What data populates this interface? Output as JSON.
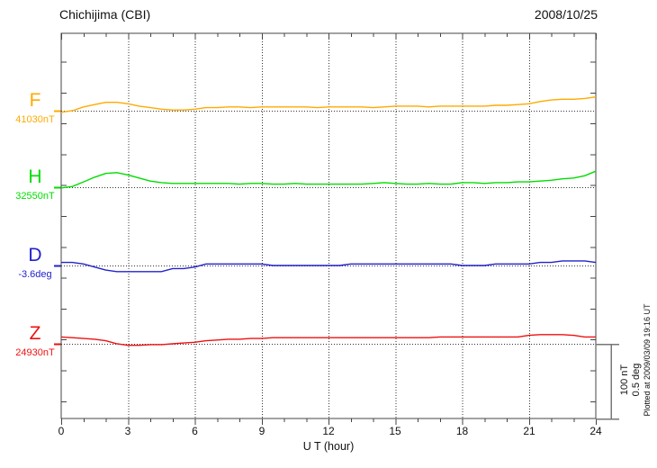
{
  "header": {
    "title": "Chichijima (CBI)",
    "date": "2008/10/25"
  },
  "xaxis": {
    "label": "U T (hour)",
    "ticks": [
      "0",
      "3",
      "6",
      "9",
      "12",
      "15",
      "18",
      "21",
      "24"
    ],
    "tick_hours": [
      0,
      3,
      6,
      9,
      12,
      15,
      18,
      21,
      24
    ],
    "minor_step_hours": 1,
    "range_hours": [
      0,
      24
    ]
  },
  "scale_bar": {
    "line1": "100 nT",
    "line2": "0.5 deg"
  },
  "footer_note": "Plotted at 2009/03/09 19:16 UT",
  "chart_data": {
    "type": "line",
    "title": "Chichijima (CBI)",
    "date": "2008/10/25",
    "xlabel": "U T (hour)",
    "x_range_hours": [
      0,
      24
    ],
    "x_step_hours": 0.5,
    "grid": "dotted vertical lines every 3 h; dotted horizontal baseline per component",
    "legend_position": "left",
    "scale_note": "vertical scale bar = 100 nT (F,H,Z) or 0.5 deg (D)",
    "series": [
      {
        "name": "F",
        "baseline_label": "41030nT",
        "baseline_value": 41030,
        "unit": "nT",
        "color": "#FFAA00",
        "deviations": [
          -2,
          0,
          5,
          8,
          11,
          11,
          9,
          6,
          4,
          2,
          1,
          1,
          2,
          4,
          4,
          5,
          5,
          4,
          5,
          5,
          5,
          5,
          5,
          4,
          5,
          5,
          5,
          5,
          4,
          5,
          6,
          6,
          6,
          5,
          6,
          6,
          6,
          6,
          6,
          7,
          7,
          8,
          9,
          12,
          14,
          15,
          15,
          16,
          18
        ]
      },
      {
        "name": "H",
        "baseline_label": "32550nT",
        "baseline_value": 32550,
        "unit": "nT",
        "color": "#00DD00",
        "deviations": [
          -1,
          1,
          7,
          13,
          18,
          19,
          16,
          12,
          8,
          6,
          5,
          5,
          5,
          5,
          5,
          5,
          4,
          5,
          5,
          4,
          4,
          5,
          4,
          4,
          4,
          4,
          4,
          4,
          5,
          6,
          5,
          4,
          4,
          5,
          4,
          4,
          6,
          6,
          5,
          6,
          6,
          7,
          7,
          8,
          9,
          11,
          12,
          15,
          21
        ]
      },
      {
        "name": "D",
        "baseline_label": "-3.6deg",
        "baseline_value": -3.6,
        "unit": "deg",
        "color": "#2222CC",
        "deviations": [
          0.02,
          0.02,
          0.01,
          -0.01,
          -0.03,
          -0.04,
          -0.04,
          -0.04,
          -0.04,
          -0.04,
          -0.02,
          -0.02,
          -0.01,
          0.01,
          0.01,
          0.01,
          0.01,
          0.01,
          0.01,
          0,
          0,
          0,
          0,
          0,
          0,
          0,
          0.01,
          0.01,
          0.01,
          0.01,
          0.01,
          0.01,
          0.01,
          0.01,
          0.01,
          0.01,
          0,
          0,
          0,
          0.01,
          0.01,
          0.01,
          0.01,
          0.02,
          0.02,
          0.03,
          0.03,
          0.03,
          0.02
        ]
      },
      {
        "name": "Z",
        "baseline_label": "24930nT",
        "baseline_value": 24930,
        "unit": "nT",
        "color": "#EE1111",
        "deviations": [
          9,
          8,
          7,
          6,
          4,
          0,
          -2,
          -2,
          -1,
          -1,
          0,
          1,
          2,
          4,
          5,
          6,
          6,
          7,
          7,
          8,
          8,
          8,
          8,
          8,
          8,
          8,
          8,
          8,
          8,
          8,
          8,
          8,
          8,
          8,
          9,
          9,
          9,
          9,
          9,
          9,
          9,
          9,
          11,
          12,
          12,
          12,
          11,
          9,
          9
        ]
      }
    ]
  }
}
